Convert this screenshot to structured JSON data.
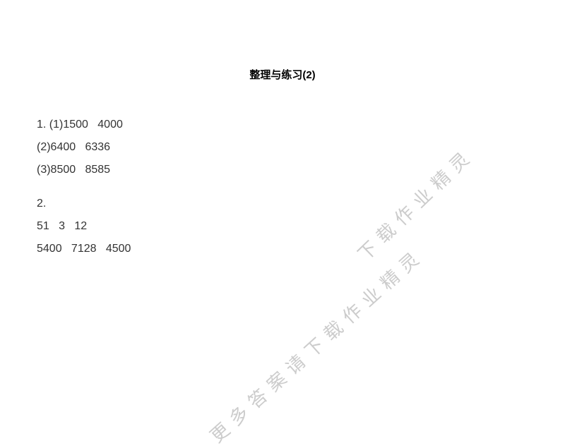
{
  "title": "整理与练习(2)",
  "section1": {
    "line1": "1. (1)1500   4000",
    "line2": "(2)6400   6336",
    "line3": "(3)8500   8585"
  },
  "section2": {
    "line1": "2.",
    "line2": "51   3   12",
    "line3": "5400   7128   4500"
  },
  "watermark": {
    "text1": "更多答案请下载作业精灵",
    "text2": "下载作业精灵",
    "color": "#cccccc",
    "fontsize": 26,
    "rotation": -43
  },
  "colors": {
    "background": "#ffffff",
    "text": "#333333",
    "title": "#000000"
  },
  "typography": {
    "title_fontsize": 15,
    "title_weight": "bold",
    "body_fontsize": 16,
    "line_height": 2.0
  }
}
